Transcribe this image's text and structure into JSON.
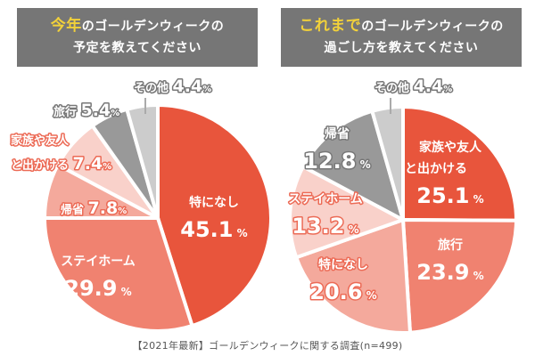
{
  "titles": {
    "left": {
      "highlight": "今年",
      "rest": "のゴールデンウィークの",
      "line2": "予定を教えてください"
    },
    "right": {
      "highlight": "これまで",
      "rest": "のゴールデンウィークの",
      "line2": "過ごし方を教えてください"
    }
  },
  "caption": "【2021年最新】ゴールデンウィークに関する調査(n=499)",
  "colors": {
    "title_bg": "#767676",
    "highlight": "#f2d13a"
  },
  "chart_data": [
    {
      "type": "pie",
      "title": "今年のゴールデンウィークの予定を教えてください",
      "unit": "%",
      "slices": [
        {
          "label": "特になし",
          "value": 45.1,
          "color": "#e8553c"
        },
        {
          "label": "ステイホーム",
          "value": 29.9,
          "color": "#f08270"
        },
        {
          "label": "帰省",
          "value": 7.8,
          "color": "#f4a99c"
        },
        {
          "label": "家族や友人と出かける",
          "value": 7.4,
          "color": "#f9d1ca"
        },
        {
          "label": "旅行",
          "value": 5.4,
          "color": "#999999"
        },
        {
          "label": "その他",
          "value": 4.4,
          "color": "#cccccc"
        }
      ]
    },
    {
      "type": "pie",
      "title": "これまでのゴールデンウィークの過ごし方を教えてください",
      "unit": "%",
      "slices": [
        {
          "label": "家族や友人と出かける",
          "value": 25.1,
          "color": "#e8553c"
        },
        {
          "label": "旅行",
          "value": 23.9,
          "color": "#f08270"
        },
        {
          "label": "特になし",
          "value": 20.6,
          "color": "#f4a99c"
        },
        {
          "label": "ステイホーム",
          "value": 13.2,
          "color": "#f9d1ca"
        },
        {
          "label": "帰省",
          "value": 12.8,
          "color": "#999999"
        },
        {
          "label": "その他",
          "value": 4.4,
          "color": "#cccccc"
        }
      ]
    }
  ]
}
